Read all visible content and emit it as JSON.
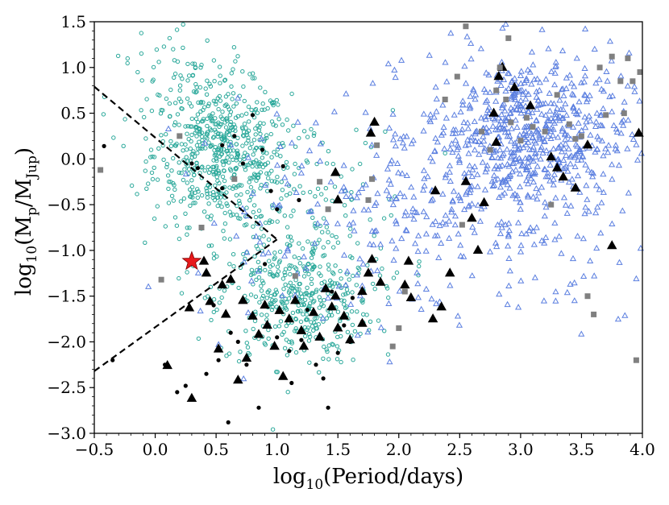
{
  "chart_data": {
    "type": "scatter",
    "xlabel_prefix": "log",
    "xlabel_sub": "10",
    "xlabel_rest": "(Period/days)",
    "ylabel_prefix": "log",
    "ylabel_sub": "10",
    "ylabel_body": "(M",
    "ylabel_sub2": "p",
    "ylabel_mid": "/M",
    "ylabel_sub3": "Jup",
    "ylabel_end": ")",
    "xlim": [
      -0.5,
      4.0
    ],
    "ylim": [
      -3.0,
      1.5
    ],
    "xticks": [
      "−0.5",
      "0.0",
      "0.5",
      "1.0",
      "1.5",
      "2.0",
      "2.5",
      "3.0",
      "3.5",
      "4.0"
    ],
    "xtick_values": [
      -0.5,
      0.0,
      0.5,
      1.0,
      1.5,
      2.0,
      2.5,
      3.0,
      3.5,
      4.0
    ],
    "yticks": [
      "1.5",
      "1.0",
      "0.5",
      "0.0",
      "−0.5",
      "−1.0",
      "−1.5",
      "−2.0",
      "−2.5",
      "−3.0"
    ],
    "ytick_values": [
      1.5,
      1.0,
      0.5,
      0.0,
      -0.5,
      -1.0,
      -1.5,
      -2.0,
      -2.5,
      -3.0
    ],
    "grid": false,
    "colors": {
      "teal_circles": "#2aa89a",
      "blue_triangles": "#5b7fe0",
      "black_triangles": "#000000",
      "black_dots": "#000000",
      "gray_squares": "#808080",
      "star": "#e8191b",
      "boundary_lines": "#000000"
    },
    "boundary_lines": [
      {
        "points": [
          [
            -0.5,
            0.79
          ],
          [
            1.0,
            -0.88
          ]
        ]
      },
      {
        "points": [
          [
            -0.5,
            -2.32
          ],
          [
            1.0,
            -0.88
          ]
        ]
      }
    ],
    "highlight_star": {
      "x": 0.3,
      "y": -1.12
    },
    "series": [
      {
        "marker": "triangle-filled",
        "points": [
          [
            0.1,
            -2.26
          ],
          [
            0.28,
            -1.63
          ],
          [
            0.3,
            -2.62
          ],
          [
            0.4,
            -1.12
          ],
          [
            0.42,
            -1.25
          ],
          [
            0.45,
            -1.56
          ],
          [
            0.52,
            -2.08
          ],
          [
            0.55,
            -1.38
          ],
          [
            0.58,
            -1.7
          ],
          [
            0.62,
            -1.32
          ],
          [
            0.68,
            -2.42
          ],
          [
            0.72,
            -1.55
          ],
          [
            0.75,
            -2.18
          ],
          [
            0.8,
            -1.72
          ],
          [
            0.85,
            -1.92
          ],
          [
            0.9,
            -1.6
          ],
          [
            0.92,
            -1.82
          ],
          [
            0.98,
            -2.05
          ],
          [
            1.02,
            -1.66
          ],
          [
            1.05,
            -2.38
          ],
          [
            1.1,
            -1.75
          ],
          [
            1.15,
            -1.55
          ],
          [
            1.2,
            -1.88
          ],
          [
            1.22,
            -2.05
          ],
          [
            1.3,
            -1.68
          ],
          [
            1.35,
            -1.95
          ],
          [
            1.4,
            -1.42
          ],
          [
            1.45,
            -1.62
          ],
          [
            1.48,
            -1.5
          ],
          [
            1.5,
            -1.85
          ],
          [
            1.55,
            -1.72
          ],
          [
            1.6,
            -1.98
          ],
          [
            1.7,
            -1.8
          ],
          [
            1.75,
            -1.25
          ],
          [
            1.78,
            -1.1
          ],
          [
            1.8,
            0.4
          ],
          [
            1.77,
            0.28
          ],
          [
            1.48,
            -0.15
          ],
          [
            1.5,
            -0.45
          ],
          [
            1.7,
            -1.45
          ],
          [
            1.85,
            -1.35
          ],
          [
            2.05,
            -1.38
          ],
          [
            2.08,
            -1.12
          ],
          [
            2.1,
            -1.52
          ],
          [
            2.28,
            -1.75
          ],
          [
            2.35,
            -1.62
          ],
          [
            2.42,
            -1.25
          ],
          [
            2.55,
            -0.25
          ],
          [
            2.65,
            -1.0
          ],
          [
            2.7,
            -0.48
          ],
          [
            2.78,
            0.5
          ],
          [
            2.82,
            0.9
          ],
          [
            2.85,
            1.0
          ],
          [
            2.8,
            0.18
          ],
          [
            2.95,
            0.78
          ],
          [
            3.08,
            0.58
          ],
          [
            3.25,
            0.02
          ],
          [
            3.3,
            -0.1
          ],
          [
            3.35,
            -0.2
          ],
          [
            3.45,
            -0.32
          ],
          [
            3.55,
            0.15
          ],
          [
            3.75,
            -0.95
          ],
          [
            3.97,
            0.28
          ],
          [
            2.3,
            -0.35
          ],
          [
            2.6,
            -0.65
          ]
        ]
      },
      {
        "marker": "dot",
        "points": [
          [
            -0.42,
            0.14
          ],
          [
            -0.35,
            -2.2
          ],
          [
            0.08,
            -2.25
          ],
          [
            0.18,
            -2.55
          ],
          [
            0.25,
            -2.48
          ],
          [
            0.35,
            -0.1
          ],
          [
            0.42,
            -2.35
          ],
          [
            0.48,
            -1.6
          ],
          [
            0.52,
            -2.2
          ],
          [
            0.55,
            0.15
          ],
          [
            0.6,
            -2.88
          ],
          [
            0.62,
            -1.9
          ],
          [
            0.68,
            -2.0
          ],
          [
            0.75,
            -2.25
          ],
          [
            0.8,
            0.48
          ],
          [
            0.85,
            -2.72
          ],
          [
            0.88,
            0.1
          ],
          [
            0.9,
            -1.15
          ],
          [
            0.95,
            -0.35
          ],
          [
            1.0,
            -1.95
          ],
          [
            1.05,
            -0.08
          ],
          [
            1.1,
            -2.1
          ],
          [
            1.12,
            -2.45
          ],
          [
            1.18,
            -0.45
          ],
          [
            1.2,
            -1.98
          ],
          [
            1.25,
            -1.65
          ],
          [
            1.32,
            -2.25
          ],
          [
            1.38,
            -2.4
          ],
          [
            1.42,
            -2.72
          ],
          [
            1.45,
            -1.45
          ],
          [
            1.5,
            -2.12
          ],
          [
            1.55,
            -1.82
          ],
          [
            1.6,
            -2.0
          ],
          [
            1.62,
            -1.52
          ],
          [
            1.7,
            -1.78
          ],
          [
            0.3,
            -0.05
          ],
          [
            0.55,
            -0.32
          ],
          [
            0.72,
            -0.05
          ],
          [
            1.0,
            -0.55
          ],
          [
            0.65,
            0.25
          ]
        ]
      },
      {
        "marker": "square",
        "points": [
          [
            -0.45,
            -0.12
          ],
          [
            0.05,
            -1.32
          ],
          [
            0.2,
            0.25
          ],
          [
            0.38,
            -0.75
          ],
          [
            0.65,
            -0.22
          ],
          [
            1.15,
            -1.28
          ],
          [
            1.35,
            -0.25
          ],
          [
            1.42,
            -0.55
          ],
          [
            1.75,
            -0.45
          ],
          [
            1.78,
            -0.22
          ],
          [
            1.82,
            0.15
          ],
          [
            1.95,
            -2.05
          ],
          [
            2.0,
            -1.85
          ],
          [
            2.05,
            -1.45
          ],
          [
            2.38,
            0.65
          ],
          [
            2.48,
            0.9
          ],
          [
            2.52,
            -0.72
          ],
          [
            2.68,
            0.3
          ],
          [
            2.75,
            0.1
          ],
          [
            2.8,
            0.75
          ],
          [
            2.83,
            1.0
          ],
          [
            2.88,
            0.65
          ],
          [
            2.92,
            0.4
          ],
          [
            3.0,
            0.2
          ],
          [
            3.05,
            0.45
          ],
          [
            3.1,
            0.35
          ],
          [
            3.2,
            0.3
          ],
          [
            3.25,
            -0.5
          ],
          [
            3.3,
            0.7
          ],
          [
            3.4,
            0.38
          ],
          [
            3.45,
            0.22
          ],
          [
            3.5,
            0.25
          ],
          [
            3.55,
            -1.5
          ],
          [
            3.6,
            -1.7
          ],
          [
            3.65,
            1.0
          ],
          [
            3.7,
            0.48
          ],
          [
            3.75,
            1.12
          ],
          [
            3.82,
            0.85
          ],
          [
            3.88,
            1.1
          ],
          [
            3.92,
            0.85
          ],
          [
            3.98,
            0.95
          ],
          [
            3.95,
            -2.2
          ],
          [
            3.85,
            0.5
          ],
          [
            2.55,
            1.45
          ],
          [
            2.9,
            1.32
          ]
        ]
      }
    ]
  }
}
